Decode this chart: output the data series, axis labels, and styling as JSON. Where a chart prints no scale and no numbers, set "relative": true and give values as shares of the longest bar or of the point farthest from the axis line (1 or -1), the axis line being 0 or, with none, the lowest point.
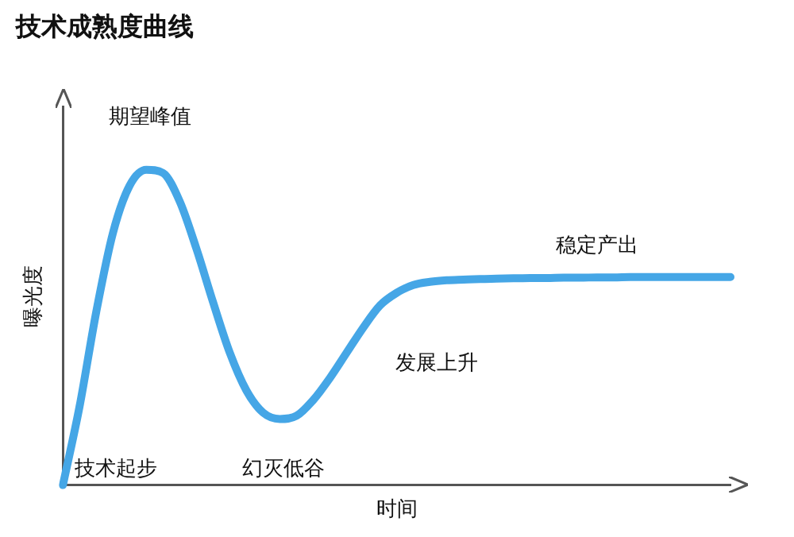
{
  "chart_data": {
    "type": "line",
    "title": "技术成熟度曲线",
    "xlabel": "时间",
    "ylabel": "曝光度",
    "relative": true,
    "color": "#45a6e6",
    "marker": "none",
    "line_style": "solid",
    "grid": false,
    "legend": false,
    "categories": [
      null,
      null,
      null,
      null,
      null,
      null,
      null,
      null,
      null,
      null,
      null,
      null,
      null,
      null,
      null,
      null,
      null,
      null,
      null,
      null,
      null,
      null,
      null,
      null,
      null,
      null,
      null,
      null,
      null,
      null,
      null,
      null,
      null,
      null,
      null,
      null,
      null,
      null,
      null,
      null,
      null
    ],
    "values": [
      0,
      0.25,
      0.55,
      0.8,
      0.95,
      1,
      0.99,
      0.9,
      0.75,
      0.58,
      0.42,
      0.3,
      0.23,
      0.21,
      0.22,
      0.27,
      0.34,
      0.42,
      0.5,
      0.57,
      0.61,
      0.635,
      0.645,
      0.65,
      0.652,
      0.654,
      0.655,
      0.656,
      0.657,
      0.657,
      0.658,
      0.658,
      0.659,
      0.659,
      0.66,
      0.66,
      0.66,
      0.66,
      0.66,
      0.66,
      0.66
    ],
    "annotations": [
      "期望峰值",
      "技术起步",
      "幻灭低谷",
      "发展上升",
      "稳定产出"
    ]
  }
}
